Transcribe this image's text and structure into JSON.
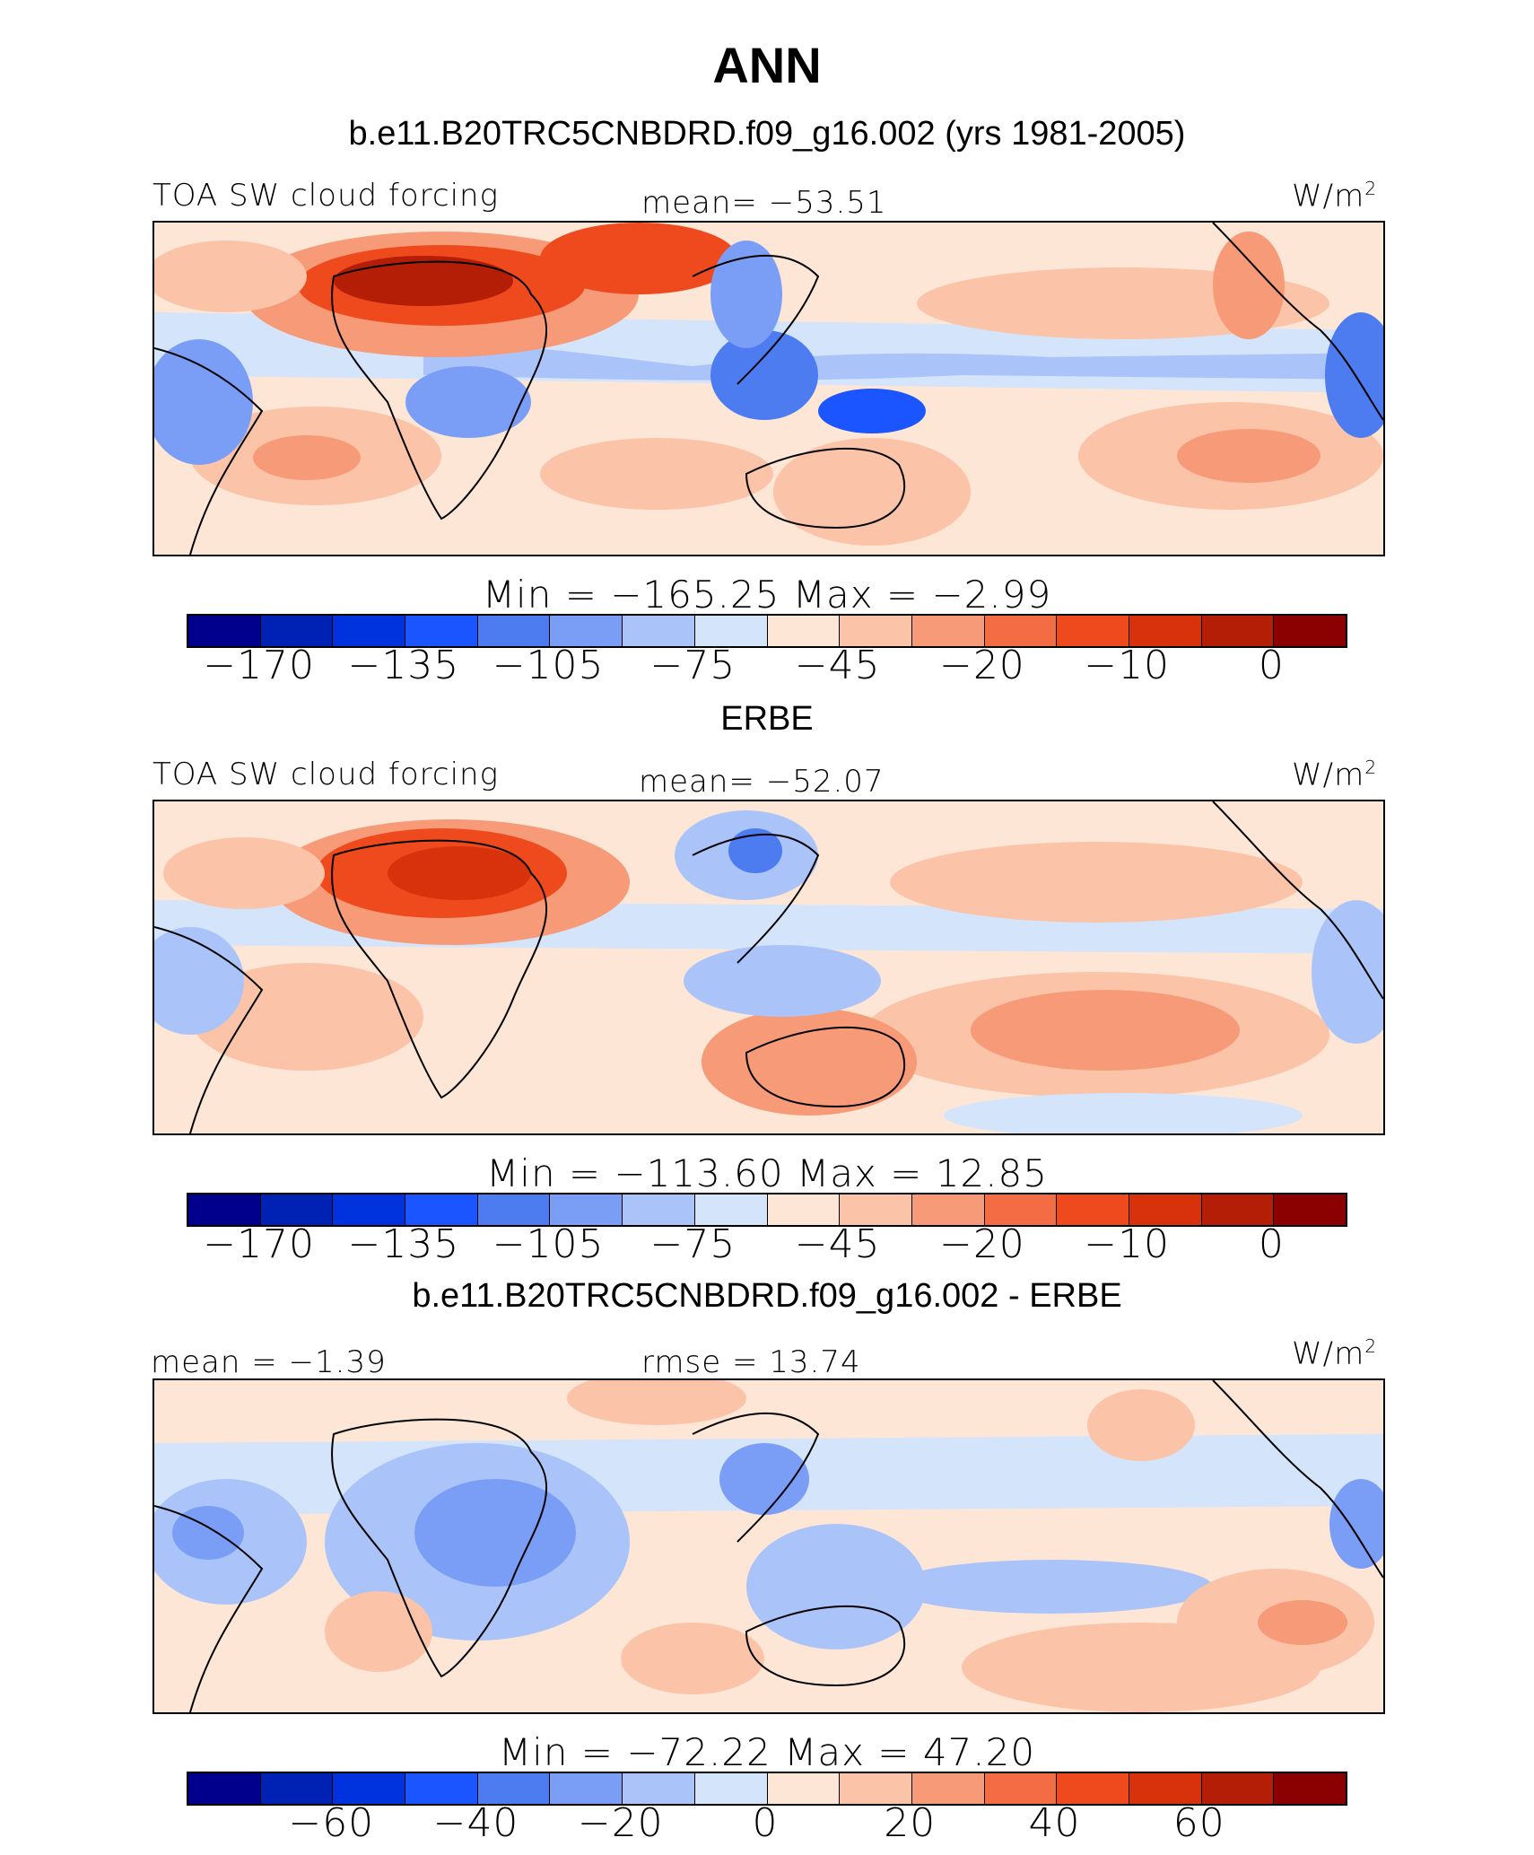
{
  "title": "ANN",
  "panels": [
    {
      "subtitle": "b.e11.B20TRC5CNBDRD.f09_g16.002 (yrs 1981-2005)",
      "left_label": "TOA SW cloud forcing",
      "center_label": "mean=  −53.51",
      "units_base": "W/m",
      "units_exp": "2",
      "stats": "Min  =  −165.25  Max  =   −2.99",
      "ticks": [
        "−170",
        "−135",
        "−105",
        "−75",
        "−45",
        "−20",
        "−10",
        "0"
      ]
    },
    {
      "subtitle": "ERBE",
      "left_label": "TOA SW cloud forcing",
      "center_label": "mean=  −52.07",
      "units_base": "W/m",
      "units_exp": "2",
      "stats": "Min  =  −113.60  Max  =   12.85",
      "ticks": [
        "−170",
        "−135",
        "−105",
        "−75",
        "−45",
        "−20",
        "−10",
        "0"
      ]
    },
    {
      "subtitle": "b.e11.B20TRC5CNBDRD.f09_g16.002 - ERBE",
      "left_label": "mean  =   −1.39",
      "center_label": "rmse  =   13.74",
      "units_base": "W/m",
      "units_exp": "2",
      "stats": "Min  =  −72.22  Max  =   47.20",
      "ticks": [
        "−60",
        "−40",
        "−20",
        "0",
        "20",
        "40",
        "60"
      ]
    }
  ],
  "colorbar_colors": [
    "#00008c",
    "#0022b4",
    "#0033dd",
    "#1a55ff",
    "#4c7cf0",
    "#7a9ef5",
    "#aac4fa",
    "#d4e4fb",
    "#fde6d6",
    "#fbc3a8",
    "#f79a77",
    "#f46c44",
    "#ee4a1e",
    "#d8320c",
    "#b51e06",
    "#8b0000"
  ]
}
